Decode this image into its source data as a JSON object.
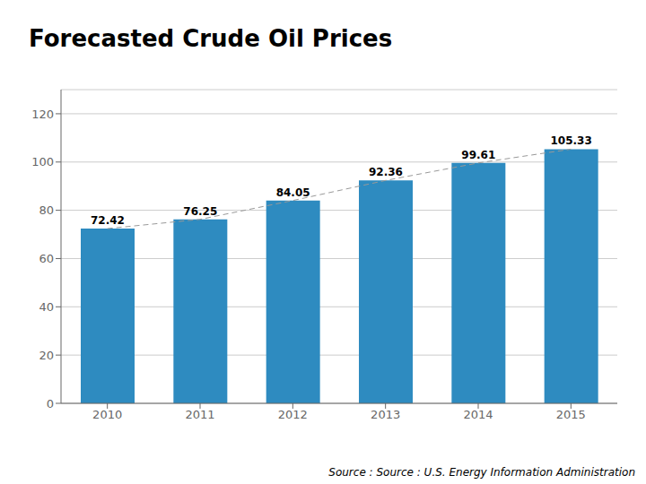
{
  "chart_data": {
    "type": "bar",
    "title": "Forecasted Crude Oil Prices",
    "categories": [
      "2010",
      "2011",
      "2012",
      "2013",
      "2014",
      "2015"
    ],
    "series": [
      {
        "type": "bar",
        "color": "#2E8BC0",
        "values": [
          72.42,
          76.25,
          84.05,
          92.36,
          99.61,
          105.33
        ]
      },
      {
        "type": "line",
        "color": "#999999",
        "line_style": "dashed",
        "values": [
          72.42,
          76.25,
          84.05,
          92.36,
          99.61,
          105.33
        ]
      }
    ],
    "ylim": [
      0,
      130
    ],
    "yticks": [
      0,
      20,
      40,
      60,
      80,
      100,
      120
    ],
    "grid": true,
    "data_labels": true,
    "annotations": [
      "Source : Source : U.S. Energy Information Administration"
    ]
  }
}
